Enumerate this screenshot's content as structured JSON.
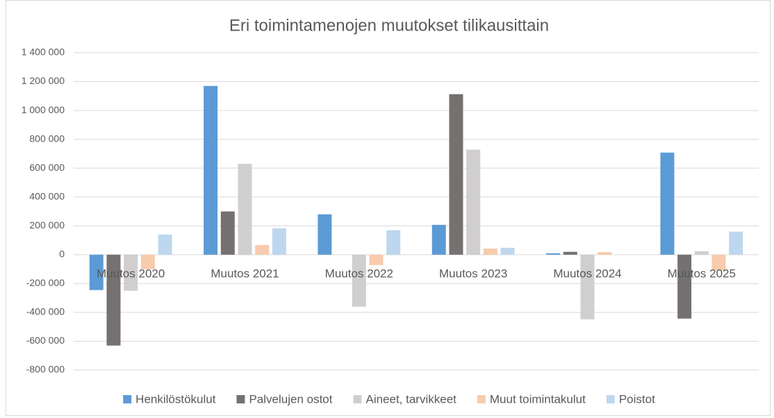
{
  "chart_data": {
    "type": "bar",
    "title": "Eri toimintamenojen muutokset tilikausittain",
    "categories": [
      "Muutos 2020",
      "Muutos 2021",
      "Muutos 2022",
      "Muutos 2023",
      "Muutos 2024",
      "Muutos 2025"
    ],
    "series": [
      {
        "name": "Henkilöstökulut",
        "color": "#5b9bd5",
        "values": [
          -245000,
          1170000,
          280000,
          207000,
          10000,
          708000
        ]
      },
      {
        "name": "Palvelujen ostot",
        "color": "#767171",
        "values": [
          -630000,
          300000,
          0,
          1113000,
          20000,
          -443000
        ]
      },
      {
        "name": "Aineet, tarvikkeet",
        "color": "#d0cece",
        "values": [
          -250000,
          630000,
          -360000,
          728000,
          -448000,
          24000
        ]
      },
      {
        "name": "Muut toimintakulut",
        "color": "#f8cbad",
        "values": [
          -100000,
          67000,
          -72000,
          43000,
          18000,
          -110000
        ]
      },
      {
        "name": "Poistot",
        "color": "#bdd7ee",
        "values": [
          140000,
          183000,
          170000,
          48000,
          0,
          160000
        ]
      }
    ],
    "ylim": [
      -800000,
      1400000
    ],
    "yticks": [
      {
        "value": -800000,
        "label": "-800 000"
      },
      {
        "value": -600000,
        "label": "-600 000"
      },
      {
        "value": -400000,
        "label": "-400 000"
      },
      {
        "value": -200000,
        "label": "-200 000"
      },
      0,
      {
        "value": 200000,
        "label": "200 000"
      },
      {
        "value": 400000,
        "label": "400 000"
      },
      {
        "value": 600000,
        "label": "600 000"
      },
      {
        "value": 800000,
        "label": "800 000"
      },
      {
        "value": 1000000,
        "label": "1 000 000"
      },
      {
        "value": 1200000,
        "label": "1 200 000"
      },
      {
        "value": 1400000,
        "label": "1 400 000"
      }
    ],
    "grid": true,
    "legend": "bottom"
  }
}
